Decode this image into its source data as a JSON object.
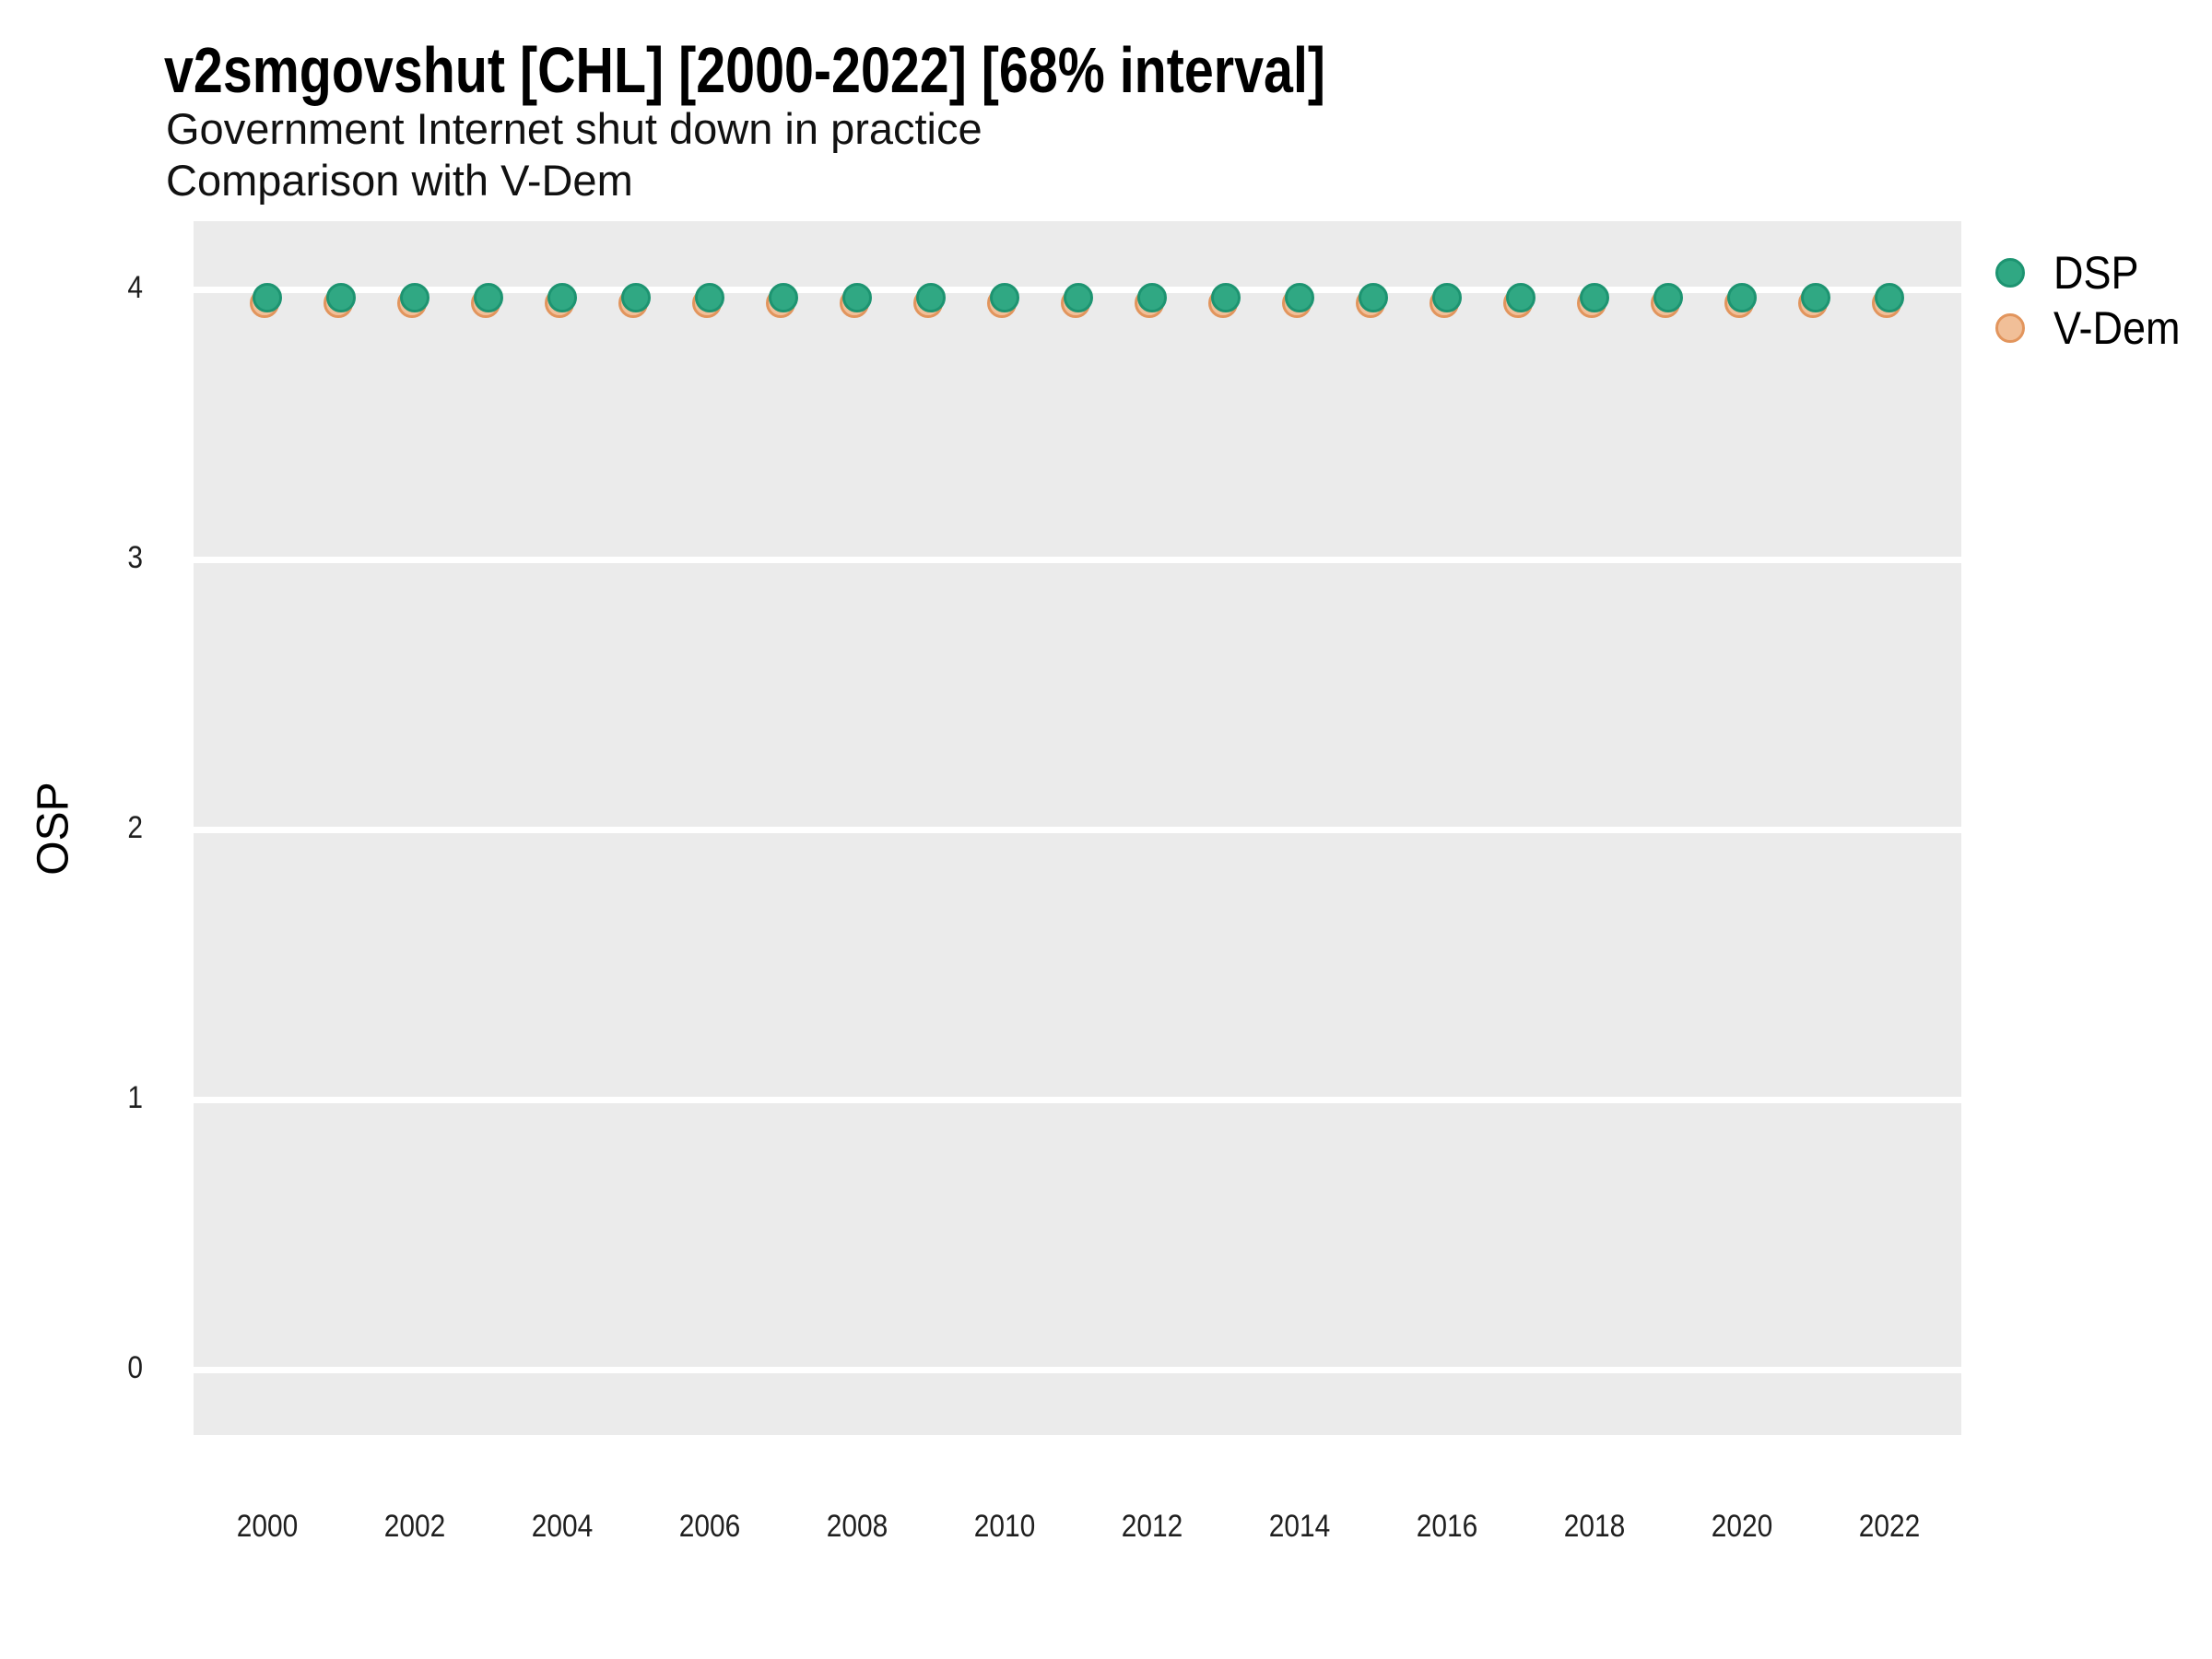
{
  "header": {
    "title": "v2smgovshut [CHL] [2000-2022] [68% interval]",
    "subtitle_line1": "Government Internet shut down in practice",
    "subtitle_line2": "Comparison with V-Dem"
  },
  "legend": {
    "items": [
      {
        "label": "DSP",
        "fill": "#30A883",
        "stroke": "#1D9471"
      },
      {
        "label": "V-Dem",
        "fill": "#F1BF98",
        "stroke": "#E2955D"
      }
    ]
  },
  "chart_data": {
    "type": "scatter",
    "title": "v2smgovshut [CHL] [2000-2022] [68% interval]",
    "subtitle": "Government Internet shut down in practice",
    "subtitle2": "Comparison with V-Dem",
    "xlabel": "",
    "ylabel": "OSP",
    "x": [
      2000,
      2001,
      2002,
      2003,
      2004,
      2005,
      2006,
      2007,
      2008,
      2009,
      2010,
      2011,
      2012,
      2013,
      2014,
      2015,
      2016,
      2017,
      2018,
      2019,
      2020,
      2021,
      2022
    ],
    "series": [
      {
        "name": "DSP",
        "fill": "#30A883",
        "stroke": "#1D9471",
        "values": [
          3.97,
          3.97,
          3.97,
          3.97,
          3.97,
          3.97,
          3.97,
          3.97,
          3.97,
          3.97,
          3.97,
          3.97,
          3.97,
          3.97,
          3.97,
          3.97,
          3.97,
          3.97,
          3.97,
          3.97,
          3.97,
          3.97,
          3.97
        ]
      },
      {
        "name": "V-Dem",
        "fill": "#F1BF98",
        "stroke": "#E2955D",
        "values": [
          3.95,
          3.95,
          3.95,
          3.95,
          3.95,
          3.95,
          3.95,
          3.95,
          3.95,
          3.95,
          3.95,
          3.95,
          3.95,
          3.95,
          3.95,
          3.95,
          3.95,
          3.95,
          3.95,
          3.95,
          3.95,
          3.95,
          3.95
        ]
      }
    ],
    "ylim": [
      -0.24,
      4.24
    ],
    "y_ticks": [
      4,
      3,
      2,
      1,
      0
    ],
    "x_tick_years": [
      2000,
      2002,
      2004,
      2006,
      2008,
      2010,
      2012,
      2014,
      2016,
      2018,
      2020,
      2022
    ],
    "grid": "horizontal-major-only",
    "legend_position": "right-top",
    "panel_bg": "#EBEBEB",
    "grid_color": "#FFFFFF"
  }
}
